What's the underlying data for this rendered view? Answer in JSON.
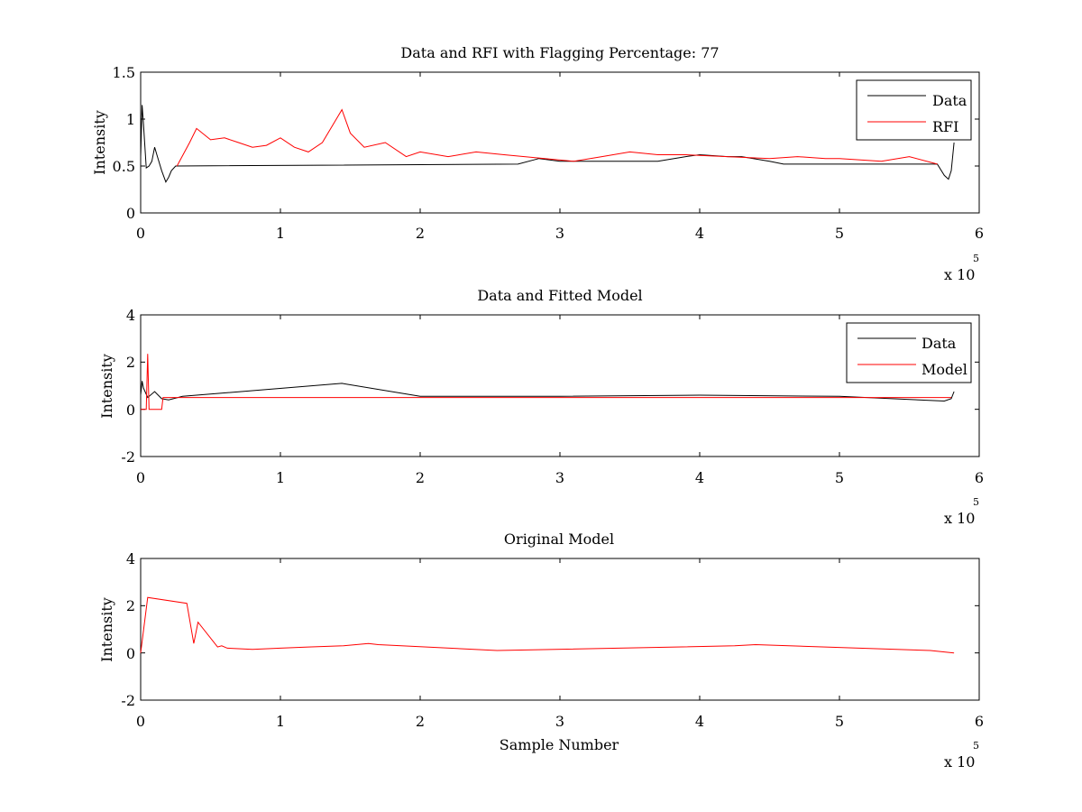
{
  "chart_data": [
    {
      "type": "line",
      "title": "Data and RFI with Flagging Percentage: 77",
      "xlabel": "",
      "ylabel": "Intensity",
      "xlim": [
        0,
        6
      ],
      "ylim": [
        0,
        1.5
      ],
      "x_ticks": [
        "0",
        "1",
        "2",
        "3",
        "4",
        "5",
        "6"
      ],
      "y_ticks": [
        "0",
        "0.5",
        "1",
        "1.5"
      ],
      "x_multiplier": "x 10",
      "x_exponent": "5",
      "legend_position": "top-right",
      "colors": {
        "Data": "#000000",
        "RFI": "#ff0000"
      },
      "series": [
        {
          "name": "Data",
          "x": [
            0,
            0.01,
            0.02,
            0.04,
            0.06,
            0.08,
            0.1,
            0.12,
            0.15,
            0.18,
            0.2,
            0.22,
            0.25,
            2.7,
            2.85,
            3.0,
            3.1,
            3.7,
            3.9,
            4.0,
            4.2,
            4.3,
            4.5,
            4.6,
            5.0,
            5.7,
            5.75,
            5.78,
            5.8,
            5.82
          ],
          "y": [
            0.6,
            1.15,
            0.95,
            0.48,
            0.5,
            0.55,
            0.7,
            0.6,
            0.45,
            0.33,
            0.38,
            0.45,
            0.5,
            0.52,
            0.58,
            0.55,
            0.55,
            0.55,
            0.6,
            0.62,
            0.6,
            0.6,
            0.55,
            0.52,
            0.52,
            0.52,
            0.4,
            0.36,
            0.45,
            0.75
          ]
        },
        {
          "name": "RFI",
          "x": [
            0.26,
            0.35,
            0.4,
            0.5,
            0.6,
            0.7,
            0.8,
            0.9,
            1.0,
            1.1,
            1.2,
            1.3,
            1.44,
            1.5,
            1.6,
            1.75,
            1.9,
            2.0,
            2.2,
            2.4,
            2.6,
            3.1,
            3.3,
            3.5,
            3.7,
            3.9,
            4.5,
            4.7,
            4.9,
            5.0,
            5.3,
            5.5,
            5.7
          ],
          "y": [
            0.5,
            0.75,
            0.9,
            0.78,
            0.8,
            0.75,
            0.7,
            0.72,
            0.8,
            0.7,
            0.65,
            0.75,
            1.1,
            0.85,
            0.7,
            0.75,
            0.6,
            0.65,
            0.6,
            0.65,
            0.62,
            0.55,
            0.6,
            0.65,
            0.62,
            0.62,
            0.58,
            0.6,
            0.58,
            0.58,
            0.55,
            0.6,
            0.52
          ]
        }
      ]
    },
    {
      "type": "line",
      "title": "Data and Fitted Model",
      "xlabel": "",
      "ylabel": "Intensity",
      "xlim": [
        0,
        6
      ],
      "ylim": [
        -2,
        4
      ],
      "x_ticks": [
        "0",
        "1",
        "2",
        "3",
        "4",
        "5",
        "6"
      ],
      "y_ticks": [
        "-2",
        "0",
        "2",
        "4"
      ],
      "x_multiplier": "x 10",
      "x_exponent": "5",
      "legend_position": "top-right",
      "colors": {
        "Data": "#000000",
        "Model": "#ff0000"
      },
      "series": [
        {
          "name": "Data",
          "x": [
            0,
            0.01,
            0.02,
            0.05,
            0.1,
            0.15,
            0.2,
            0.3,
            1.44,
            2.0,
            3.0,
            4.0,
            5.0,
            5.75,
            5.8,
            5.82
          ],
          "y": [
            0.6,
            1.2,
            0.9,
            0.5,
            0.75,
            0.45,
            0.4,
            0.55,
            1.1,
            0.55,
            0.55,
            0.6,
            0.55,
            0.35,
            0.45,
            0.75
          ]
        },
        {
          "name": "Model",
          "x": [
            0,
            0.04,
            0.05,
            0.06,
            0.15,
            0.16,
            3.0,
            5.8
          ],
          "y": [
            0,
            0,
            2.35,
            0,
            0,
            0.5,
            0.5,
            0.5
          ]
        }
      ]
    },
    {
      "type": "line",
      "title": "Original Model",
      "xlabel": "Sample Number",
      "ylabel": "Intensity",
      "xlim": [
        0,
        6
      ],
      "ylim": [
        -2,
        4
      ],
      "x_ticks": [
        "0",
        "1",
        "2",
        "3",
        "4",
        "5",
        "6"
      ],
      "y_ticks": [
        "-2",
        "0",
        "2",
        "4"
      ],
      "x_multiplier": "x 10",
      "x_exponent": "5",
      "colors": {
        "Model": "#ff0000"
      },
      "series": [
        {
          "name": "",
          "x": [
            0,
            0.05,
            0.33,
            0.38,
            0.41,
            0.55,
            0.58,
            0.62,
            0.8,
            1.0,
            1.2,
            1.45,
            1.63,
            1.7,
            2.55,
            4.25,
            4.4,
            5.65,
            5.82
          ],
          "y": [
            0,
            2.35,
            2.1,
            0.4,
            1.3,
            0.25,
            0.3,
            0.2,
            0.15,
            0.2,
            0.25,
            0.3,
            0.4,
            0.35,
            0.1,
            0.3,
            0.35,
            0.1,
            0
          ]
        }
      ]
    }
  ]
}
